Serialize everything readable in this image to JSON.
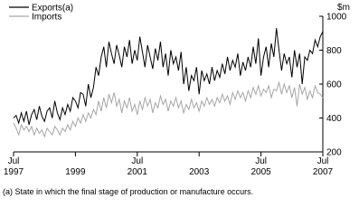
{
  "chart_data": {
    "type": "line",
    "y_unit": "$m",
    "footnote": "(a) State in which the final stage of production or manufacture occurs.",
    "x": [
      "1997-07",
      "1997-08",
      "1997-09",
      "1997-10",
      "1997-11",
      "1997-12",
      "1998-01",
      "1998-02",
      "1998-03",
      "1998-04",
      "1998-05",
      "1998-06",
      "1998-07",
      "1998-08",
      "1998-09",
      "1998-10",
      "1998-11",
      "1998-12",
      "1999-01",
      "1999-02",
      "1999-03",
      "1999-04",
      "1999-05",
      "1999-06",
      "1999-07",
      "1999-08",
      "1999-09",
      "1999-10",
      "1999-11",
      "1999-12",
      "2000-01",
      "2000-02",
      "2000-03",
      "2000-04",
      "2000-05",
      "2000-06",
      "2000-07",
      "2000-08",
      "2000-09",
      "2000-10",
      "2000-11",
      "2000-12",
      "2001-01",
      "2001-02",
      "2001-03",
      "2001-04",
      "2001-05",
      "2001-06",
      "2001-07",
      "2001-08",
      "2001-09",
      "2001-10",
      "2001-11",
      "2001-12",
      "2002-01",
      "2002-02",
      "2002-03",
      "2002-04",
      "2002-05",
      "2002-06",
      "2002-07",
      "2002-08",
      "2002-09",
      "2002-10",
      "2002-11",
      "2002-12",
      "2003-01",
      "2003-02",
      "2003-03",
      "2003-04",
      "2003-05",
      "2003-06",
      "2003-07",
      "2003-08",
      "2003-09",
      "2003-10",
      "2003-11",
      "2003-12",
      "2004-01",
      "2004-02",
      "2004-03",
      "2004-04",
      "2004-05",
      "2004-06",
      "2004-07",
      "2004-08",
      "2004-09",
      "2004-10",
      "2004-11",
      "2004-12",
      "2005-01",
      "2005-02",
      "2005-03",
      "2005-04",
      "2005-05",
      "2005-06",
      "2005-07",
      "2005-08",
      "2005-09",
      "2005-10",
      "2005-11",
      "2005-12",
      "2006-01",
      "2006-02",
      "2006-03",
      "2006-04",
      "2006-05",
      "2006-06",
      "2006-07",
      "2006-08",
      "2006-09",
      "2006-10",
      "2006-11",
      "2006-12",
      "2007-01",
      "2007-02",
      "2007-03",
      "2007-04",
      "2007-05",
      "2007-06",
      "2007-07"
    ],
    "series": [
      {
        "name": "Exports(a)",
        "color": "#000000",
        "values": [
          400,
          415,
          370,
          430,
          380,
          440,
          360,
          420,
          450,
          390,
          470,
          410,
          380,
          440,
          460,
          400,
          500,
          430,
          390,
          460,
          420,
          480,
          440,
          520,
          500,
          460,
          550,
          540,
          470,
          600,
          520,
          580,
          700,
          650,
          760,
          820,
          700,
          850,
          780,
          720,
          830,
          770,
          700,
          820,
          760,
          860,
          720,
          800,
          740,
          880,
          790,
          700,
          830,
          760,
          690,
          810,
          740,
          850,
          700,
          780,
          650,
          800,
          720,
          760,
          680,
          790,
          600,
          700,
          560,
          650,
          620,
          700,
          540,
          680,
          620,
          660,
          600,
          700,
          620,
          680,
          640,
          720,
          660,
          760,
          680,
          740,
          700,
          780,
          650,
          730,
          680,
          760,
          700,
          820,
          720,
          870,
          650,
          760,
          820,
          700,
          840,
          760,
          930,
          800,
          680,
          780,
          720,
          760,
          640,
          800,
          700,
          780,
          600,
          760,
          740,
          800,
          780,
          860,
          820,
          880,
          910
        ]
      },
      {
        "name": "Imports",
        "color": "#a6a6a6",
        "values": [
          370,
          340,
          300,
          360,
          330,
          350,
          320,
          350,
          300,
          340,
          310,
          330,
          290,
          340,
          320,
          300,
          350,
          330,
          300,
          340,
          320,
          360,
          330,
          380,
          350,
          400,
          370,
          420,
          380,
          430,
          400,
          450,
          420,
          500,
          440,
          520,
          460,
          540,
          490,
          550,
          470,
          510,
          430,
          500,
          460,
          520,
          440,
          480,
          420,
          500,
          450,
          520,
          470,
          510,
          430,
          490,
          460,
          530,
          480,
          510,
          440,
          500,
          470,
          520,
          460,
          500,
          430,
          480,
          450,
          510,
          460,
          490,
          440,
          500,
          470,
          520,
          480,
          510,
          470,
          520,
          490,
          540,
          500,
          530,
          480,
          550,
          510,
          560,
          520,
          550,
          500,
          560,
          520,
          580,
          540,
          590,
          530,
          570,
          550,
          590,
          520,
          570,
          560,
          610,
          540,
          600,
          550,
          590,
          520,
          580,
          470,
          600,
          540,
          580,
          510,
          560,
          520,
          590,
          550,
          540,
          520
        ]
      }
    ],
    "ylim": [
      200,
      1000
    ],
    "yticks": [
      200,
      400,
      600,
      800,
      1000
    ],
    "xticks": [
      {
        "value": "1997-07",
        "label": [
          "Jul",
          "1997"
        ]
      },
      {
        "value": "1999-07",
        "label": [
          "",
          "1999"
        ]
      },
      {
        "value": "2001-07",
        "label": [
          "Jul",
          "2001"
        ]
      },
      {
        "value": "2003-07",
        "label": [
          "",
          "2003"
        ]
      },
      {
        "value": "2005-07",
        "label": [
          "Jul",
          "2005"
        ]
      },
      {
        "value": "2007-07",
        "label": [
          "Jul",
          "2007"
        ]
      }
    ]
  }
}
